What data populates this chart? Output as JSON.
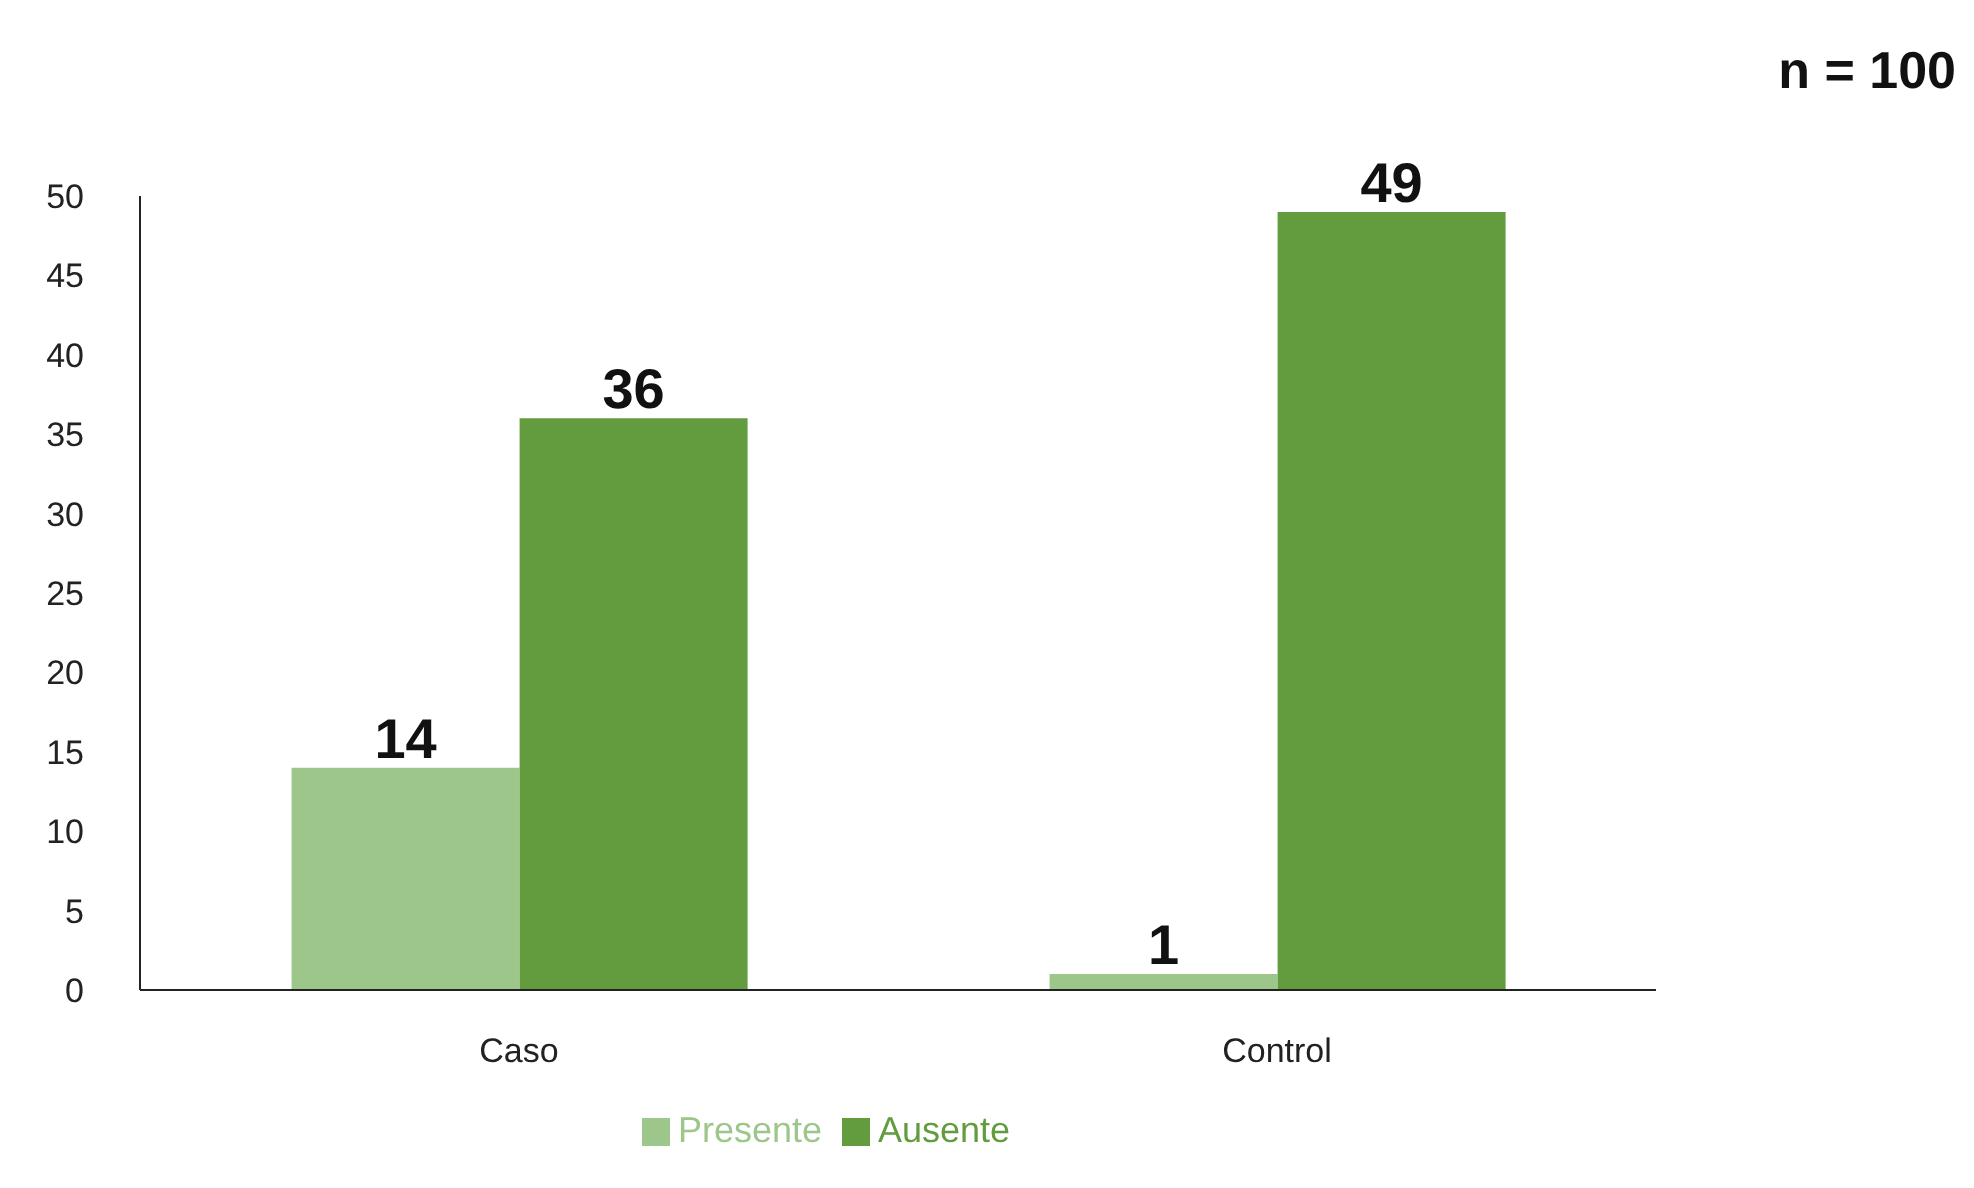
{
  "chart_data": {
    "type": "bar",
    "categories": [
      "Caso",
      "Control"
    ],
    "series": [
      {
        "name": "Presente",
        "color": "#9dc68b",
        "values": [
          14,
          1
        ]
      },
      {
        "name": "Ausente",
        "color": "#629c3f",
        "values": [
          36,
          49
        ]
      }
    ],
    "ylim": [
      0,
      50
    ],
    "yticks": [
      0,
      5,
      10,
      15,
      20,
      25,
      30,
      35,
      40,
      45,
      50
    ],
    "grid": false,
    "legend": "bottom",
    "data_labels": true,
    "annotations": [
      "n = 100"
    ]
  }
}
